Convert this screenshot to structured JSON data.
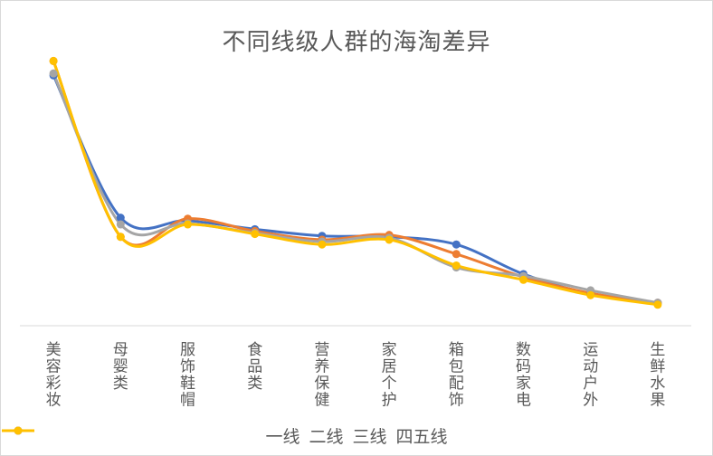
{
  "chart_data": {
    "type": "line",
    "title": "不同线级人群的海淘差异",
    "categories": [
      "美容彩妆",
      "母婴类",
      "服饰鞋帽",
      "食品类",
      "营养保健",
      "家居个护",
      "箱包配饰",
      "数码家电",
      "运动户外",
      "生鲜水果"
    ],
    "series": [
      {
        "name": "一线",
        "color": "#4472C4",
        "values": [
          0.262,
          0.113,
          0.11,
          0.101,
          0.094,
          0.093,
          0.085,
          0.054,
          0.033,
          0.024
        ]
      },
      {
        "name": "二线",
        "color": "#ED7D31",
        "values": [
          0.277,
          0.093,
          0.112,
          0.099,
          0.09,
          0.095,
          0.075,
          0.051,
          0.034,
          0.024
        ]
      },
      {
        "name": "三线",
        "color": "#A5A5A5",
        "values": [
          0.264,
          0.106,
          0.107,
          0.097,
          0.088,
          0.092,
          0.061,
          0.052,
          0.037,
          0.024
        ]
      },
      {
        "name": "四五线",
        "color": "#FFC000",
        "values": [
          0.277,
          0.093,
          0.106,
          0.096,
          0.085,
          0.09,
          0.063,
          0.048,
          0.032,
          0.022
        ]
      }
    ],
    "xlabel": "",
    "ylabel": "",
    "ylim": [
      0,
      0.32
    ],
    "grid": false,
    "legend_position": "bottom",
    "smooth": true,
    "markers": true
  }
}
